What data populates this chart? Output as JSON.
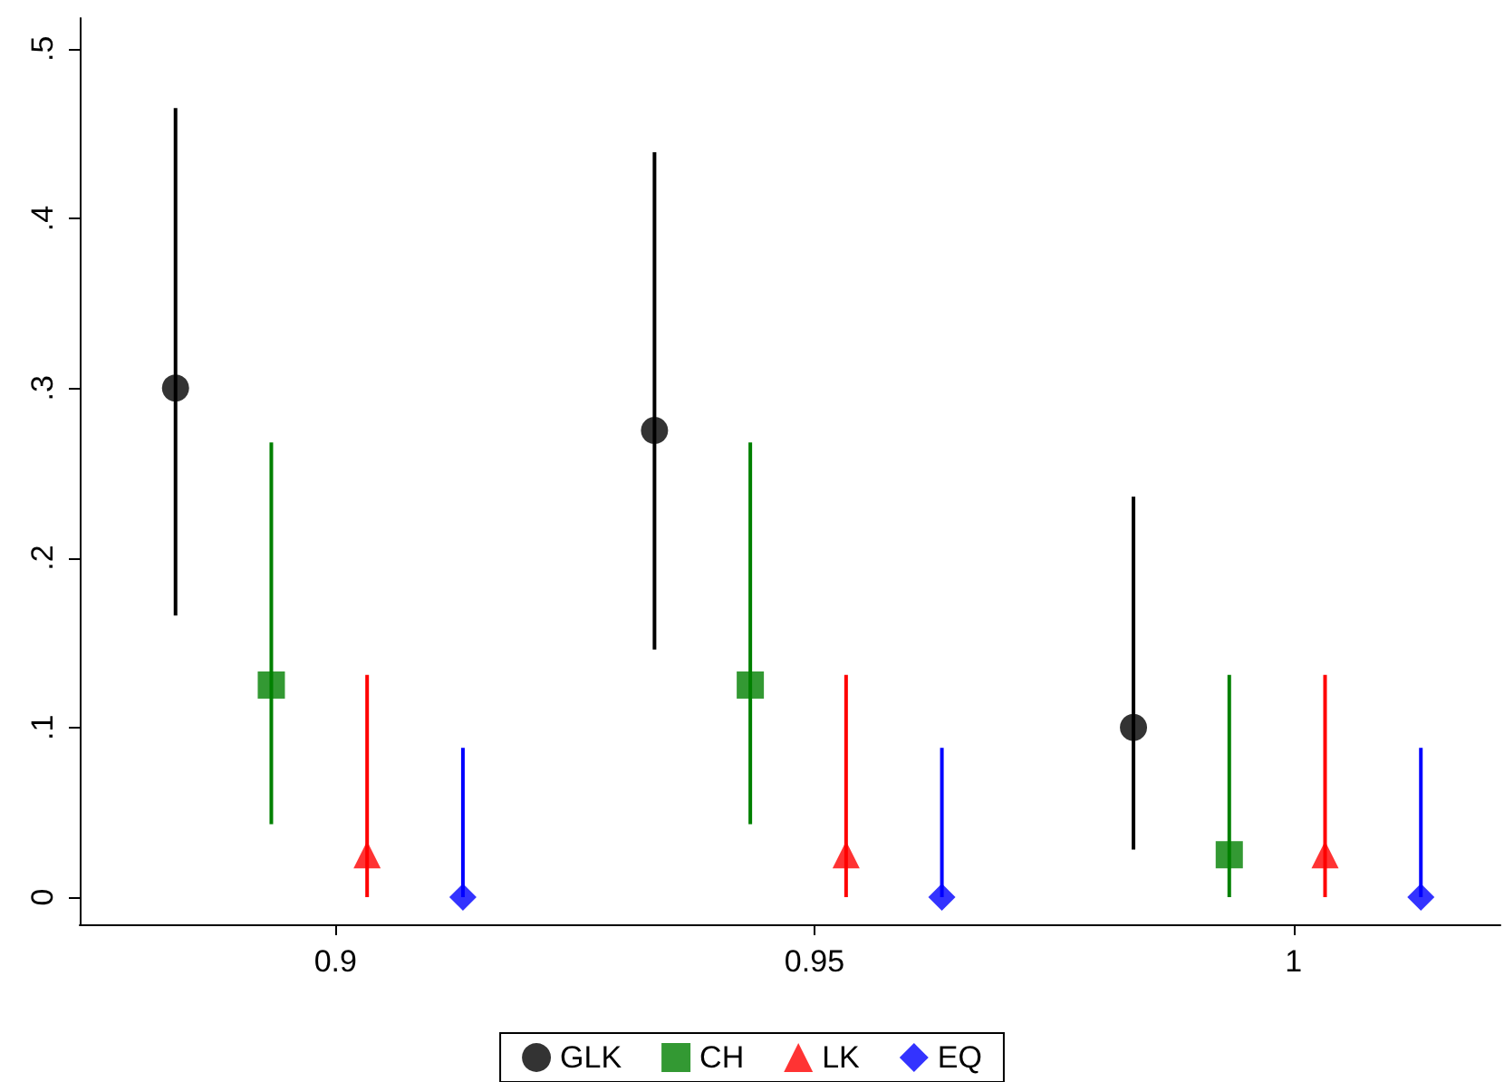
{
  "chart_data": {
    "type": "scatter",
    "series": [
      {
        "name": "GLK",
        "color": "#000000",
        "marker": "circle",
        "x": [
          0.8833,
          0.9333,
          0.9833
        ],
        "values": [
          0.3,
          0.275,
          0.1
        ],
        "errors": [
          [
            0.166,
            0.465
          ],
          [
            0.146,
            0.439
          ],
          [
            0.028,
            0.236
          ]
        ]
      },
      {
        "name": "CH",
        "color": "#008000",
        "marker": "square",
        "x": [
          0.8933,
          0.9433,
          0.9933
        ],
        "values": [
          0.125,
          0.125,
          0.025
        ],
        "errors": [
          [
            0.043,
            0.268
          ],
          [
            0.043,
            0.268
          ],
          [
            0,
            0.131
          ]
        ]
      },
      {
        "name": "LK",
        "color": "#ff0000",
        "marker": "triangle",
        "x": [
          0.9033,
          0.9533,
          1.0033
        ],
        "values": [
          0.025,
          0.025,
          0.025
        ],
        "errors": [
          [
            0,
            0.131
          ],
          [
            0,
            0.131
          ],
          [
            0,
            0.131
          ]
        ]
      },
      {
        "name": "EQ",
        "color": "#0000ff",
        "marker": "diamond",
        "x": [
          0.9133,
          0.9633,
          1.0133
        ],
        "values": [
          0,
          0,
          0
        ],
        "errors": [
          [
            0,
            0.088
          ],
          [
            0,
            0.088
          ],
          [
            0,
            0.088
          ]
        ]
      }
    ],
    "xlim": [
      0.8733,
      1.0216
    ],
    "xticks": [
      0.9,
      0.95,
      1
    ],
    "ylim": [
      -0.016,
      0.518
    ],
    "yticks": [
      0,
      {
        "value": 0.1,
        "label": ".1"
      },
      {
        "value": 0.2,
        "label": ".2"
      },
      {
        "value": 0.3,
        "label": ".3"
      },
      {
        "value": 0.4,
        "label": ".4"
      },
      {
        "value": 0.5,
        "label": ".5"
      }
    ],
    "grid": false,
    "legend": "bottom"
  }
}
